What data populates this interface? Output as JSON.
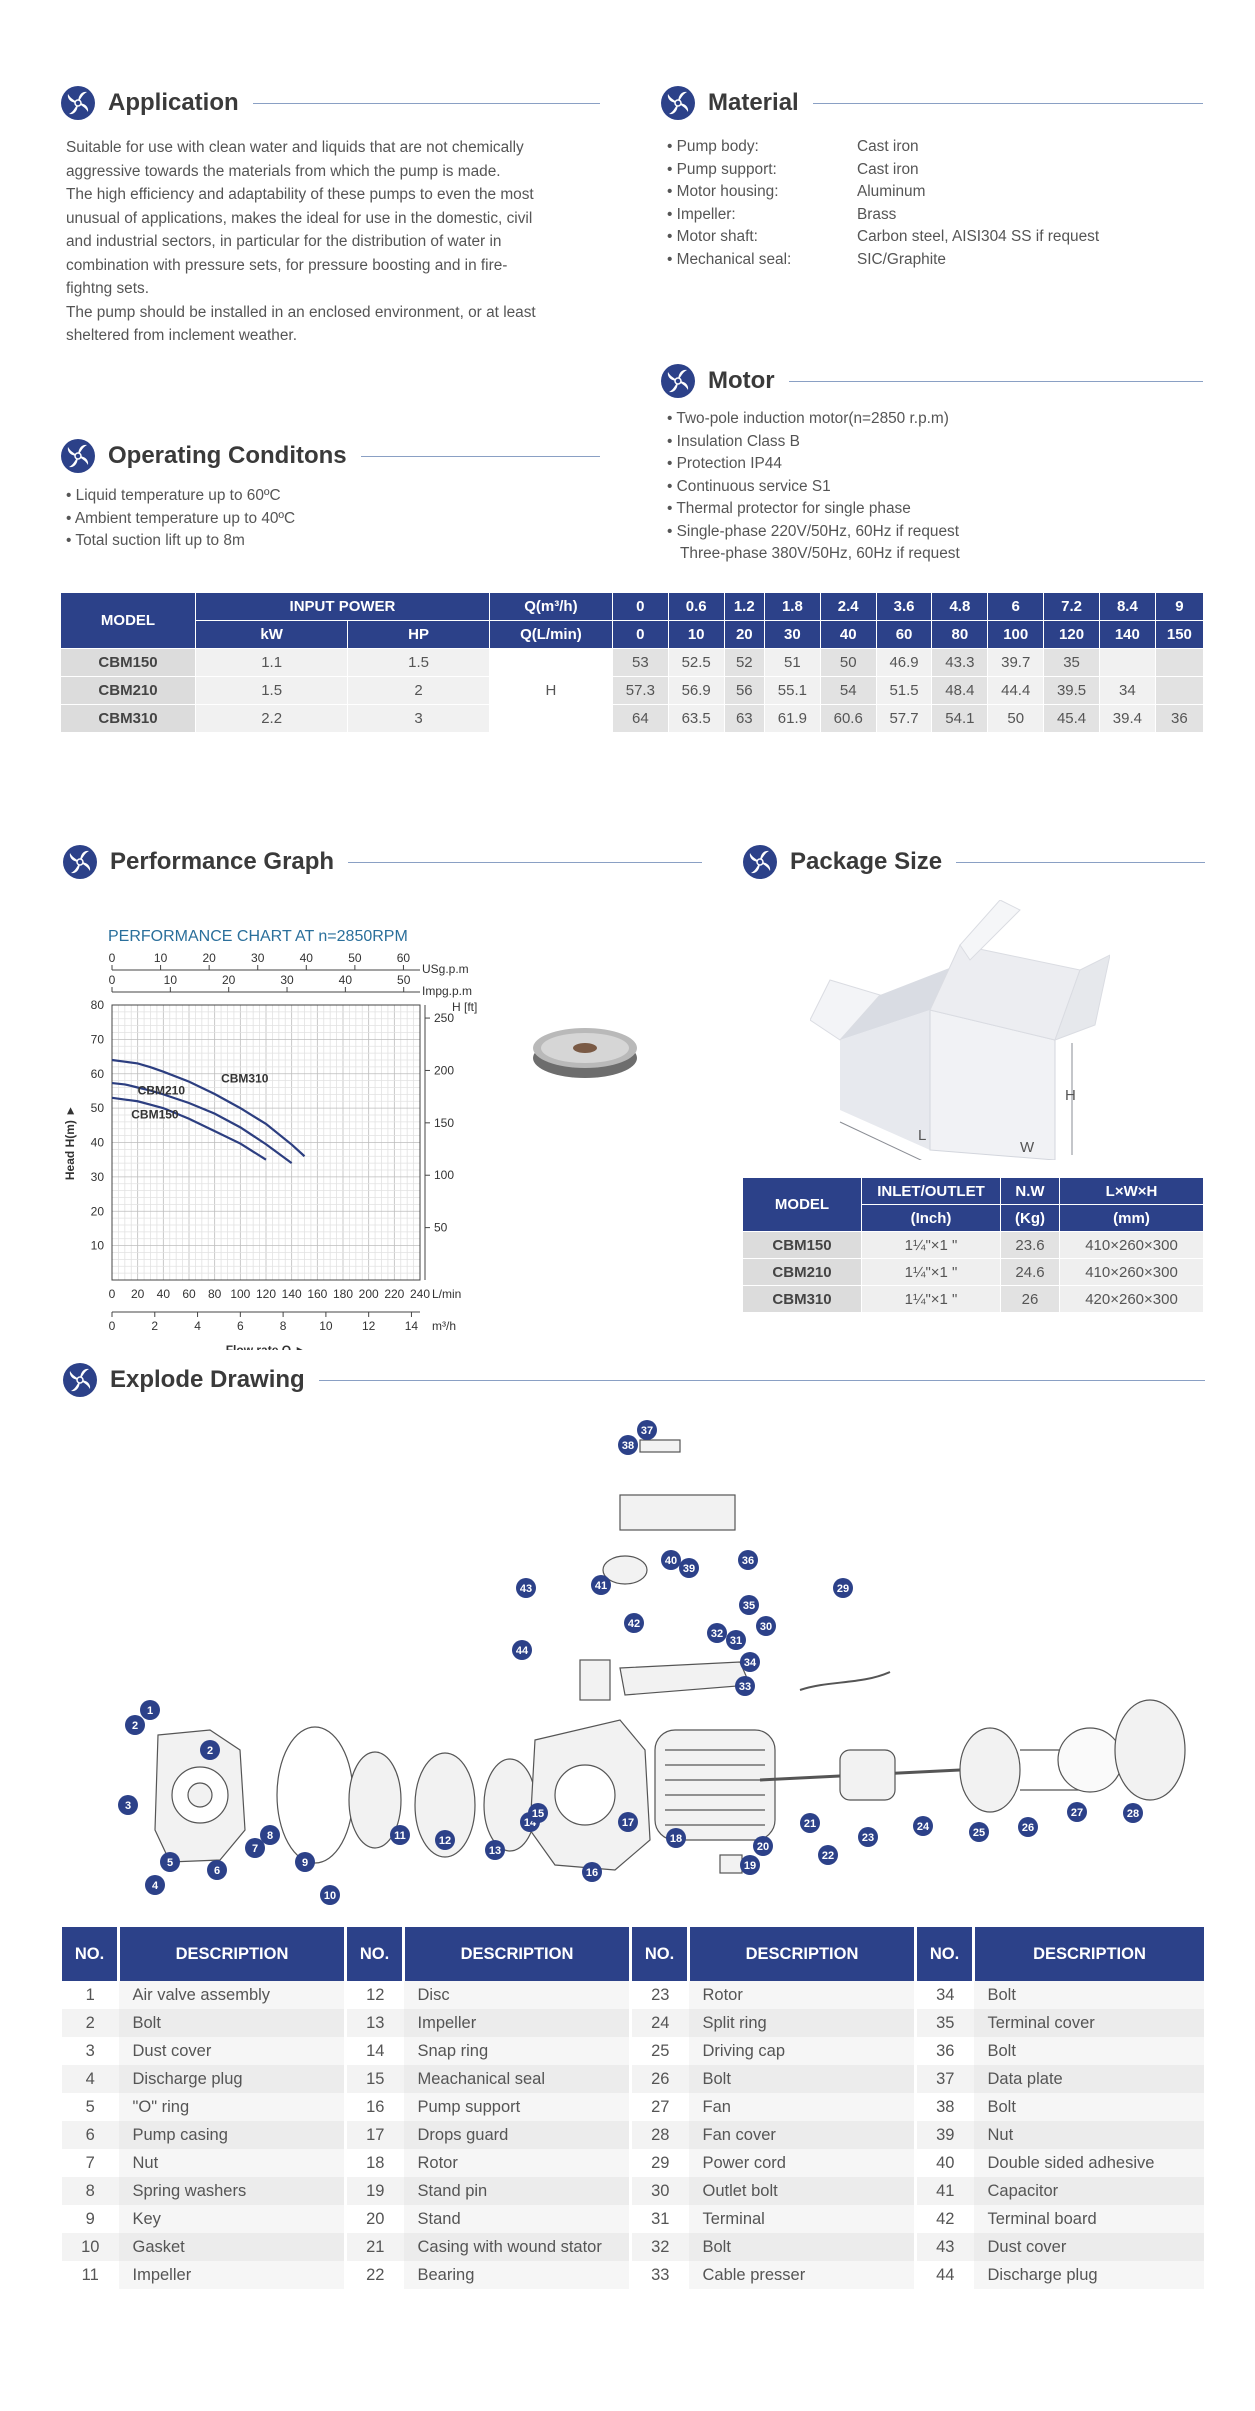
{
  "application": {
    "title": "Application",
    "lines": [
      "Suitable for use with clean water and liquids that are not chemically",
      "aggressive towards the materials from which the pump is made.",
      "The high efficiency and adaptability of these pumps to even the most",
      "unusual of applications, makes the ideal for use in the domestic, civil",
      "and industrial sectors, in particular for the distribution of water in",
      "combination with pressure sets, for pressure boosting and in fire-",
      "fightng sets.",
      "The pump should be installed in an enclosed environment, or at least",
      "sheltered from inclement weather."
    ]
  },
  "material": {
    "title": "Material",
    "rows": [
      {
        "k": "• Pump body:",
        "v": "Cast iron"
      },
      {
        "k": "• Pump support:",
        "v": "Cast iron"
      },
      {
        "k": "• Motor housing:",
        "v": "Aluminum"
      },
      {
        "k": "• Impeller:",
        "v": "Brass"
      },
      {
        "k": "• Motor shaft:",
        "v": "Carbon steel, AISI304 SS if request"
      },
      {
        "k": "• Mechanical seal:",
        "v": "SIC/Graphite"
      }
    ]
  },
  "motor": {
    "title": "Motor",
    "items": [
      "• Two-pole induction motor(n=2850 r.p.m)",
      "• Insulation Class B",
      "• Protection IP44",
      "• Continuous service S1",
      "• Thermal protector for single phase",
      "• Single-phase 220V/50Hz, 60Hz if request",
      "Three-phase 380V/50Hz, 60Hz if request"
    ]
  },
  "operating": {
    "title": "Operating Conditons",
    "items": [
      "• Liquid temperature up to 60ºC",
      "• Ambient temperature up to 40ºC",
      "• Total suction lift up to 8m"
    ]
  },
  "spec_table": {
    "model": "MODEL",
    "input_power": "INPUT POWER",
    "kw": "kW",
    "hp": "HP",
    "q_m3h": "Q(m³/h)",
    "q_lmin": "Q(L/min)",
    "h_label": "H",
    "flow_m3h": [
      "0",
      "0.6",
      "1.2",
      "1.8",
      "2.4",
      "3.6",
      "4.8",
      "6",
      "7.2",
      "8.4",
      "9"
    ],
    "flow_lmin": [
      "0",
      "10",
      "20",
      "30",
      "40",
      "60",
      "80",
      "100",
      "120",
      "140",
      "150"
    ],
    "rows": [
      {
        "model": "CBM150",
        "kw": "1.1",
        "hp": "1.5",
        "h": [
          "53",
          "52.5",
          "52",
          "51",
          "50",
          "46.9",
          "43.3",
          "39.7",
          "35",
          "",
          ""
        ]
      },
      {
        "model": "CBM210",
        "kw": "1.5",
        "hp": "2",
        "h": [
          "57.3",
          "56.9",
          "56",
          "55.1",
          "54",
          "51.5",
          "48.4",
          "44.4",
          "39.5",
          "34",
          ""
        ]
      },
      {
        "model": "CBM310",
        "kw": "2.2",
        "hp": "3",
        "h": [
          "64",
          "63.5",
          "63",
          "61.9",
          "60.6",
          "57.7",
          "54.1",
          "50",
          "45.4",
          "39.4",
          "36"
        ]
      }
    ]
  },
  "performance": {
    "title": "Performance Graph",
    "chart_title": "PERFORMANCE CHART AT n=2850RPM"
  },
  "chart_data": {
    "type": "line",
    "title": "PERFORMANCE CHART AT n=2850RPM",
    "xlabel": "Flow rate Q ►",
    "ylabel": "Head H(m) ►",
    "right_axis_label": "H [ft]",
    "x_unit_lmin": "L/min",
    "x_unit_m3h": "m³/h",
    "top_unit_us": "USg.p.m",
    "top_unit_imp": "Impg.p.m",
    "x_lmin_ticks": [
      "0",
      "20",
      "40",
      "60",
      "80",
      "100",
      "120",
      "140",
      "160",
      "180",
      "200",
      "220",
      "240"
    ],
    "x_m3h_ticks": [
      "0",
      "2",
      "4",
      "6",
      "8",
      "10",
      "12",
      "14"
    ],
    "top_us_ticks": [
      "0",
      "10",
      "20",
      "30",
      "40",
      "50",
      "60"
    ],
    "top_imp_ticks": [
      "0",
      "10",
      "20",
      "30",
      "40",
      "50"
    ],
    "y_ticks": [
      "10",
      "20",
      "30",
      "40",
      "50",
      "60",
      "70",
      "80"
    ],
    "ft_ticks": [
      "50",
      "100",
      "150",
      "200",
      "250"
    ],
    "xlim": [
      0,
      240
    ],
    "ylim": [
      0,
      80
    ],
    "series": [
      {
        "name": "CBM150",
        "x": [
          0,
          10,
          20,
          30,
          40,
          60,
          80,
          100,
          120
        ],
        "y": [
          53,
          52.5,
          52,
          51,
          50,
          46.9,
          43.3,
          39.7,
          35
        ]
      },
      {
        "name": "CBM210",
        "x": [
          0,
          10,
          20,
          30,
          40,
          60,
          80,
          100,
          120,
          140
        ],
        "y": [
          57.3,
          56.9,
          56,
          55.1,
          54,
          51.5,
          48.4,
          44.4,
          39.5,
          34
        ]
      },
      {
        "name": "CBM310",
        "x": [
          0,
          10,
          20,
          30,
          40,
          60,
          80,
          100,
          120,
          140,
          150
        ],
        "y": [
          64,
          63.5,
          63,
          61.9,
          60.6,
          57.7,
          54.1,
          50,
          45.4,
          39.4,
          36
        ]
      }
    ]
  },
  "package": {
    "title": "Package Size",
    "box_labels": {
      "h": "H",
      "l": "L",
      "w": "W"
    },
    "head": {
      "model": "MODEL",
      "inlet": "INLET/OUTLET",
      "nw": "N.W",
      "lwh": "L×W×H",
      "inch": "(Inch)",
      "kg": "(Kg)",
      "mm": "(mm)"
    },
    "rows": [
      {
        "model": "CBM150",
        "io": "1¼\"×1 \"",
        "nw": "23.6",
        "size": "410×260×300"
      },
      {
        "model": "CBM210",
        "io": "1¼\"×1 \"",
        "nw": "24.6",
        "size": "410×260×300"
      },
      {
        "model": "CBM310",
        "io": "1¼\"×1 \"",
        "nw": "26",
        "size": "420×260×300"
      }
    ]
  },
  "explode": {
    "title": "Explode Drawing",
    "callouts": [
      "1",
      "2",
      "2",
      "3",
      "4",
      "5",
      "6",
      "7",
      "8",
      "9",
      "10",
      "11",
      "12",
      "13",
      "14",
      "15",
      "16",
      "17",
      "18",
      "19",
      "20",
      "21",
      "22",
      "23",
      "24",
      "25",
      "26",
      "27",
      "28",
      "29",
      "30",
      "31",
      "32",
      "33",
      "34",
      "35",
      "36",
      "37",
      "38",
      "39",
      "40",
      "41",
      "42",
      "43",
      "44",
      "5"
    ]
  },
  "parts": {
    "no_head": "NO.",
    "desc_head": "DESCRIPTION",
    "columns": [
      [
        [
          "1",
          "Air valve assembly"
        ],
        [
          "2",
          "Bolt"
        ],
        [
          "3",
          "Dust cover"
        ],
        [
          "4",
          "Discharge plug"
        ],
        [
          "5",
          "\"O\" ring"
        ],
        [
          "6",
          "Pump casing"
        ],
        [
          "7",
          "Nut"
        ],
        [
          "8",
          "Spring washers"
        ],
        [
          "9",
          "Key"
        ],
        [
          "10",
          "Gasket"
        ],
        [
          "11",
          "Impeller"
        ]
      ],
      [
        [
          "12",
          "Disc"
        ],
        [
          "13",
          "Impeller"
        ],
        [
          "14",
          "Snap ring"
        ],
        [
          "15",
          "Meachanical seal"
        ],
        [
          "16",
          "Pump support"
        ],
        [
          "17",
          "Drops guard"
        ],
        [
          "18",
          "Rotor"
        ],
        [
          "19",
          "Stand pin"
        ],
        [
          "20",
          "Stand"
        ],
        [
          "21",
          "Casing with wound stator"
        ],
        [
          "22",
          "Bearing"
        ]
      ],
      [
        [
          "23",
          "Rotor"
        ],
        [
          "24",
          "Split ring"
        ],
        [
          "25",
          "Driving cap"
        ],
        [
          "26",
          "Bolt"
        ],
        [
          "27",
          "Fan"
        ],
        [
          "28",
          "Fan cover"
        ],
        [
          "29",
          "Power cord"
        ],
        [
          "30",
          "Outlet bolt"
        ],
        [
          "31",
          "Terminal"
        ],
        [
          "32",
          "Bolt"
        ],
        [
          "33",
          "Cable presser"
        ]
      ],
      [
        [
          "34",
          "Bolt"
        ],
        [
          "35",
          "Terminal cover"
        ],
        [
          "36",
          "Bolt"
        ],
        [
          "37",
          "Data plate"
        ],
        [
          "38",
          "Bolt"
        ],
        [
          "39",
          "Nut"
        ],
        [
          "40",
          "Double sided adhesive"
        ],
        [
          "41",
          "Capacitor"
        ],
        [
          "42",
          "Terminal board"
        ],
        [
          "43",
          "Dust cover"
        ],
        [
          "44",
          "Discharge plug"
        ]
      ]
    ]
  },
  "colors": {
    "brand": "#2c4189",
    "rule": "#8aa0c4",
    "curve": "#2c3e80"
  }
}
